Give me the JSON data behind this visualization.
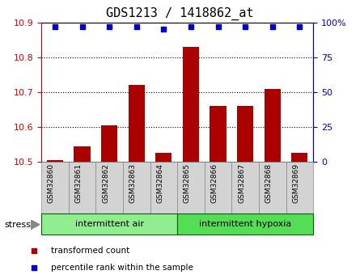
{
  "title": "GDS1213 / 1418862_at",
  "samples": [
    "GSM32860",
    "GSM32861",
    "GSM32862",
    "GSM32863",
    "GSM32864",
    "GSM32865",
    "GSM32866",
    "GSM32867",
    "GSM32868",
    "GSM32869"
  ],
  "transformed_counts": [
    10.505,
    10.545,
    10.605,
    10.72,
    10.525,
    10.83,
    10.66,
    10.66,
    10.71,
    10.525
  ],
  "percentile_ranks": [
    97,
    97,
    97,
    97,
    95,
    97,
    97,
    97,
    97,
    97
  ],
  "groups": [
    {
      "label": "intermittent air",
      "start": 0,
      "end": 5,
      "color": "#90EE90"
    },
    {
      "label": "intermittent hypoxia",
      "start": 5,
      "end": 10,
      "color": "#55DD55"
    }
  ],
  "stress_label": "stress",
  "ylim": [
    10.5,
    10.9
  ],
  "yticks": [
    10.5,
    10.6,
    10.7,
    10.8,
    10.9
  ],
  "right_yticks": [
    0,
    25,
    50,
    75,
    100
  ],
  "bar_color": "#AA0000",
  "dot_color": "#0000CC",
  "bar_width": 0.6,
  "legend_items": [
    {
      "label": "transformed count",
      "color": "#AA0000"
    },
    {
      "label": "percentile rank within the sample",
      "color": "#0000CC"
    }
  ],
  "title_fontsize": 11,
  "tick_fontsize": 8,
  "left_axis_color": "#CC0000",
  "right_axis_color": "#0000BB",
  "label_bg_color": "#D3D3D3",
  "label_border_color": "#888888",
  "group_border_color": "#006600"
}
